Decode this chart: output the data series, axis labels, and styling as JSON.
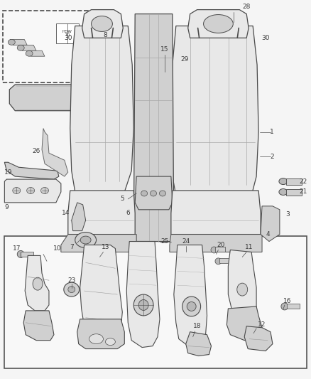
{
  "bg_color": "#f5f5f5",
  "fig_width": 4.38,
  "fig_height": 5.33,
  "dpi": 100,
  "line_color": "#4a4a4a",
  "text_color": "#3a3a3a",
  "font_size": 6.5,
  "fill_light": "#e8e8e8",
  "fill_mid": "#d0d0d0",
  "fill_dark": "#b8b8b8",
  "fill_white": "#f8f8f8"
}
